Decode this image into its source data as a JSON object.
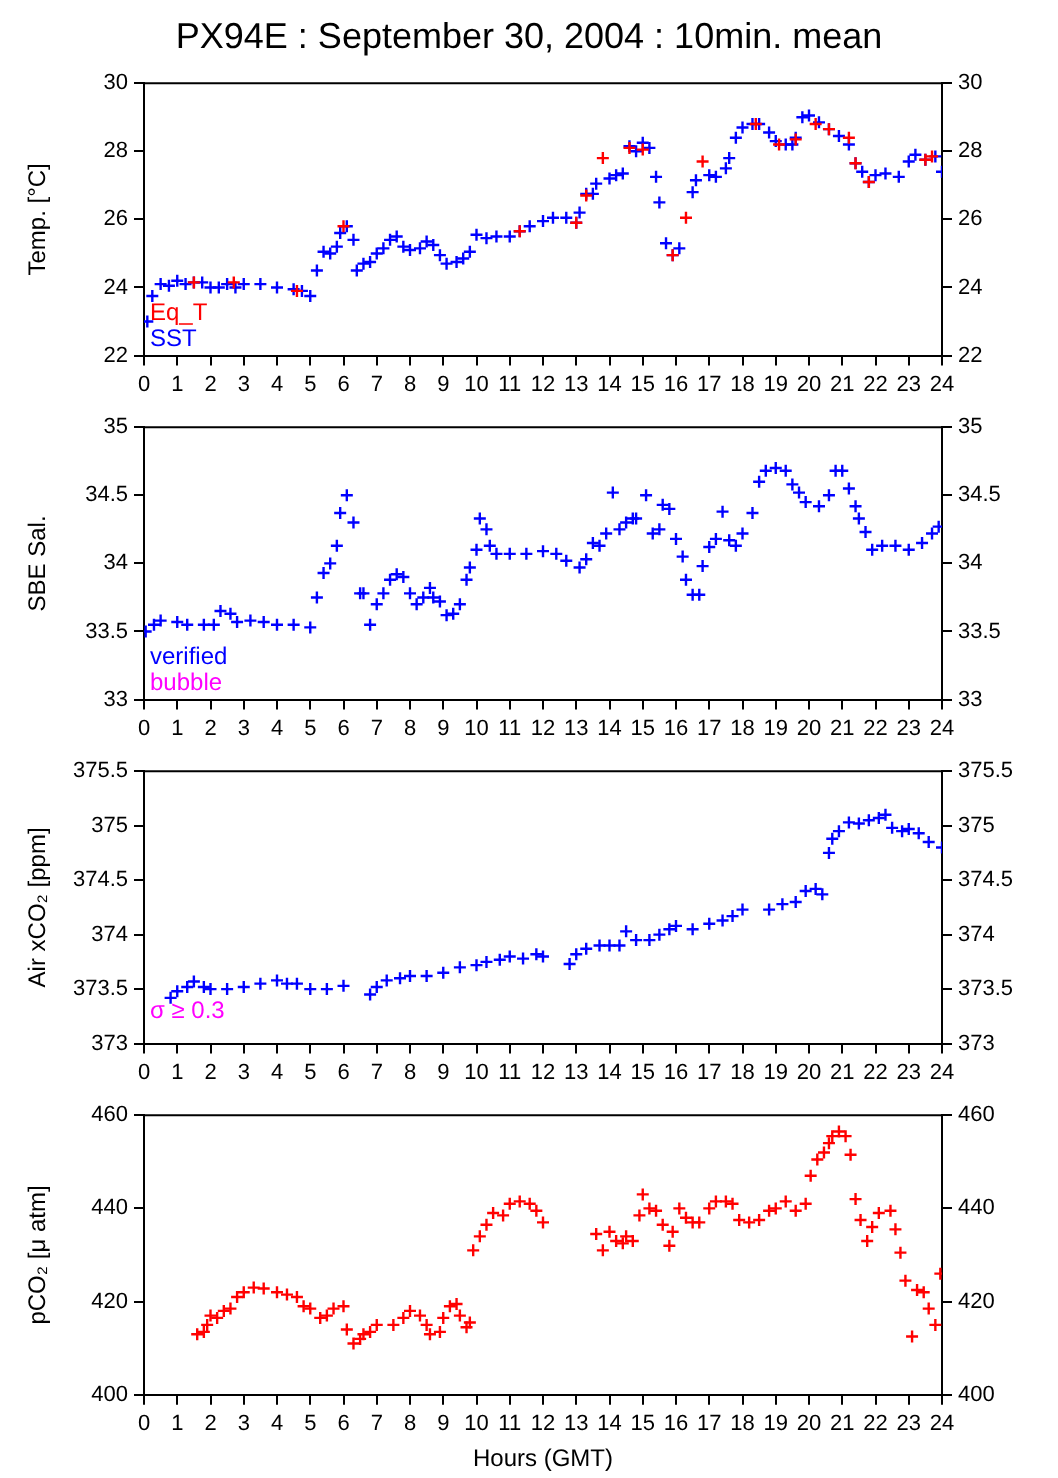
{
  "chart_data": [
    {
      "type": "scatter",
      "title": "PX94E : September 30, 2004 : 10min. mean",
      "ylabel": "Temp. [°C]",
      "marker": "cross",
      "legend": "bottom left",
      "grid": false,
      "xlim": [
        0,
        24
      ],
      "xticks": [
        0,
        1,
        2,
        3,
        4,
        5,
        6,
        7,
        8,
        9,
        10,
        11,
        12,
        13,
        14,
        15,
        16,
        17,
        18,
        19,
        20,
        21,
        22,
        23,
        24
      ],
      "ylim": [
        22,
        30
      ],
      "yticks": [
        22,
        24,
        26,
        28,
        30
      ],
      "y2lim": [
        22,
        30
      ],
      "y2ticks": [
        22,
        24,
        26,
        28,
        30
      ],
      "series": [
        {
          "name": "Eq_T",
          "color": "#ff0000",
          "x": [
            1.5,
            2.7,
            4.6,
            6.0,
            11.3,
            13.0,
            13.3,
            13.8,
            14.6,
            15.0,
            15.9,
            16.3,
            16.8,
            18.4,
            19.1,
            19.6,
            20.2,
            20.6,
            21.2,
            21.4,
            21.8,
            23.5,
            23.7
          ],
          "values": [
            24.15,
            24.15,
            23.9,
            25.8,
            25.65,
            25.9,
            26.7,
            27.8,
            28.1,
            28.05,
            24.95,
            26.05,
            27.7,
            28.8,
            28.2,
            28.35,
            28.8,
            28.65,
            28.4,
            27.65,
            27.1,
            27.75,
            27.85
          ]
        },
        {
          "name": "SST",
          "color": "#0000ff",
          "x": [
            0.1,
            0.25,
            0.5,
            0.75,
            1.0,
            1.25,
            1.5,
            1.75,
            2.0,
            2.25,
            2.5,
            2.75,
            3.0,
            3.5,
            4.0,
            4.5,
            4.75,
            5.0,
            5.2,
            5.4,
            5.6,
            5.8,
            5.9,
            6.1,
            6.3,
            6.4,
            6.6,
            6.8,
            7.0,
            7.2,
            7.4,
            7.6,
            7.8,
            8.0,
            8.3,
            8.5,
            8.7,
            8.9,
            9.1,
            9.4,
            9.6,
            9.8,
            10.0,
            10.3,
            10.6,
            11.0,
            11.3,
            11.6,
            12.0,
            12.3,
            12.7,
            13.0,
            13.1,
            13.3,
            13.5,
            13.6,
            13.8,
            14.0,
            14.2,
            14.4,
            14.6,
            14.8,
            15.0,
            15.2,
            15.4,
            15.5,
            15.7,
            15.9,
            16.1,
            16.3,
            16.5,
            16.6,
            16.8,
            17.0,
            17.2,
            17.5,
            17.6,
            17.8,
            18.0,
            18.3,
            18.5,
            18.8,
            19.0,
            19.3,
            19.5,
            19.6,
            19.8,
            20.0,
            20.3,
            20.6,
            20.9,
            21.2,
            21.4,
            21.6,
            21.8,
            22.0,
            22.3,
            22.7,
            23.0,
            23.2,
            23.5,
            23.8,
            24.0
          ],
          "values": [
            23.0,
            23.75,
            24.1,
            24.05,
            24.2,
            24.1,
            24.15,
            24.15,
            24.0,
            24.0,
            24.1,
            24.0,
            24.1,
            24.1,
            24.0,
            23.95,
            23.9,
            23.75,
            24.5,
            25.05,
            25.0,
            25.2,
            25.6,
            25.8,
            25.4,
            24.5,
            24.7,
            24.75,
            25.0,
            25.15,
            25.4,
            25.5,
            25.2,
            25.1,
            25.15,
            25.35,
            25.25,
            24.95,
            24.7,
            24.75,
            24.85,
            25.05,
            25.55,
            25.45,
            25.5,
            25.5,
            25.65,
            25.8,
            25.95,
            26.05,
            26.05,
            25.9,
            26.2,
            26.75,
            26.75,
            27.05,
            null,
            27.2,
            27.3,
            27.35,
            28.15,
            28.0,
            28.25,
            28.1,
            27.25,
            26.5,
            25.3,
            24.95,
            25.15,
            null,
            26.8,
            27.15,
            null,
            27.3,
            27.25,
            27.5,
            27.8,
            28.4,
            28.7,
            28.8,
            28.8,
            28.55,
            28.3,
            28.2,
            28.2,
            28.4,
            29.0,
            29.05,
            28.85,
            28.65,
            28.45,
            28.2,
            27.65,
            27.4,
            27.1,
            27.3,
            27.35,
            27.25,
            27.7,
            27.9,
            27.75,
            27.85,
            27.4
          ]
        }
      ]
    },
    {
      "type": "scatter",
      "ylabel": "SBE Sal.",
      "marker": "cross",
      "legend": "bottom left",
      "grid": false,
      "xlim": [
        0,
        24
      ],
      "xticks": [
        0,
        1,
        2,
        3,
        4,
        5,
        6,
        7,
        8,
        9,
        10,
        11,
        12,
        13,
        14,
        15,
        16,
        17,
        18,
        19,
        20,
        21,
        22,
        23,
        24
      ],
      "ylim": [
        33,
        35
      ],
      "yticks": [
        33,
        33.5,
        34,
        34.5,
        35
      ],
      "y2lim": [
        33,
        35
      ],
      "y2ticks": [
        33,
        33.5,
        34,
        34.5,
        35
      ],
      "series": [
        {
          "name": "verified",
          "color": "#0000ff",
          "x": [
            0.05,
            0.3,
            0.5,
            1.0,
            1.3,
            1.8,
            2.1,
            2.3,
            2.6,
            2.8,
            3.2,
            3.6,
            4.0,
            4.5,
            5.0,
            5.2,
            5.4,
            5.6,
            5.8,
            5.9,
            6.1,
            6.3,
            6.5,
            6.6,
            6.8,
            7.0,
            7.2,
            7.4,
            7.6,
            7.8,
            8.0,
            8.2,
            8.4,
            8.6,
            8.7,
            8.9,
            9.1,
            9.3,
            9.5,
            9.7,
            9.8,
            10.0,
            10.1,
            10.3,
            10.4,
            10.6,
            11.0,
            11.5,
            12.0,
            12.4,
            12.7,
            13.1,
            13.3,
            13.5,
            13.7,
            13.9,
            14.1,
            14.3,
            14.5,
            14.7,
            14.8,
            15.1,
            15.3,
            15.5,
            15.6,
            15.8,
            16.0,
            16.2,
            16.3,
            16.5,
            16.7,
            16.8,
            17.0,
            17.2,
            17.4,
            17.6,
            17.8,
            18.0,
            18.3,
            18.5,
            18.7,
            19.0,
            19.3,
            19.5,
            19.7,
            19.9,
            20.3,
            20.6,
            20.8,
            21.0,
            21.2,
            21.4,
            21.5,
            21.7,
            21.9,
            22.2,
            22.6,
            23.0,
            23.4,
            23.7,
            23.9
          ],
          "values": [
            33.5,
            33.55,
            33.58,
            33.57,
            33.55,
            33.55,
            33.55,
            33.65,
            33.63,
            33.57,
            33.58,
            33.57,
            33.55,
            33.55,
            33.53,
            33.75,
            33.93,
            34.0,
            34.13,
            34.37,
            34.5,
            34.3,
            33.78,
            33.78,
            33.55,
            33.7,
            33.78,
            33.88,
            33.92,
            33.9,
            33.78,
            33.7,
            33.75,
            33.82,
            33.75,
            33.72,
            33.62,
            33.63,
            33.7,
            33.88,
            33.97,
            34.1,
            34.33,
            34.25,
            34.13,
            34.07,
            34.07,
            34.07,
            34.09,
            34.07,
            34.02,
            33.97,
            34.03,
            34.15,
            34.13,
            34.22,
            34.52,
            34.25,
            34.3,
            34.33,
            34.33,
            34.5,
            34.22,
            34.25,
            34.43,
            34.4,
            34.18,
            34.05,
            33.88,
            33.77,
            33.77,
            33.98,
            34.12,
            34.18,
            34.38,
            34.17,
            34.13,
            34.22,
            34.37,
            34.6,
            34.68,
            34.7,
            34.68,
            34.58,
            34.52,
            34.45,
            34.42,
            34.5,
            34.68,
            34.68,
            34.55,
            34.42,
            34.33,
            34.23,
            34.1,
            34.13,
            34.13,
            34.1,
            34.15,
            34.22,
            34.27
          ]
        },
        {
          "name": "bubble",
          "color": "#ff00ff"
        }
      ]
    },
    {
      "type": "scatter",
      "ylabel": "Air xCO₂ [ppm]",
      "marker": "cross",
      "grid": false,
      "annotations": [
        "σ ≥ 0.3"
      ],
      "xlim": [
        0,
        24
      ],
      "xticks": [
        0,
        1,
        2,
        3,
        4,
        5,
        6,
        7,
        8,
        9,
        10,
        11,
        12,
        13,
        14,
        15,
        16,
        17,
        18,
        19,
        20,
        21,
        22,
        23,
        24
      ],
      "ylim": [
        373,
        375.5
      ],
      "yticks": [
        373,
        373.5,
        374,
        374.5,
        375,
        375.5
      ],
      "y2lim": [
        373,
        375.5
      ],
      "y2ticks": [
        373,
        373.5,
        374,
        374.5,
        375,
        375.5
      ],
      "series": [
        {
          "color": "#0000ff",
          "x": [
            0.8,
            1.0,
            1.3,
            1.5,
            1.8,
            2.0,
            2.5,
            3.0,
            3.5,
            4.0,
            4.3,
            4.6,
            5.0,
            5.5,
            6.0,
            6.8,
            7.0,
            7.3,
            7.7,
            8.0,
            8.5,
            9.0,
            9.5,
            10.0,
            10.3,
            10.7,
            11.0,
            11.4,
            11.8,
            12.0,
            12.8,
            13.0,
            13.3,
            13.7,
            14.0,
            14.3,
            14.5,
            14.8,
            15.2,
            15.5,
            15.8,
            16.0,
            16.5,
            17.0,
            17.4,
            17.7,
            18.0,
            18.8,
            19.2,
            19.6,
            19.9,
            20.2,
            20.4,
            20.6,
            20.7,
            20.9,
            21.2,
            21.5,
            21.8,
            22.1,
            22.3,
            22.5,
            22.8,
            23.0,
            23.3,
            23.6,
            24.0
          ],
          "values": [
            373.42,
            373.48,
            373.52,
            373.57,
            373.52,
            373.5,
            373.5,
            373.52,
            373.55,
            373.58,
            373.55,
            373.55,
            373.5,
            373.5,
            373.53,
            373.45,
            373.52,
            373.58,
            373.6,
            373.62,
            373.62,
            373.65,
            373.7,
            373.72,
            373.75,
            373.77,
            373.8,
            373.78,
            373.82,
            373.8,
            373.73,
            373.82,
            373.87,
            373.9,
            373.9,
            373.9,
            374.03,
            373.95,
            373.95,
            374.0,
            374.05,
            374.08,
            374.05,
            374.1,
            374.13,
            374.17,
            374.23,
            374.23,
            374.28,
            374.3,
            374.4,
            374.42,
            374.37,
            374.75,
            374.88,
            374.95,
            375.03,
            375.02,
            375.05,
            375.07,
            375.1,
            374.98,
            374.95,
            374.97,
            374.93,
            374.85,
            374.8
          ]
        }
      ]
    },
    {
      "type": "scatter",
      "ylabel": "pCO₂ [μ atm]",
      "xlabel": "Hours (GMT)",
      "marker": "cross",
      "grid": false,
      "xlim": [
        0,
        24
      ],
      "xticks": [
        0,
        1,
        2,
        3,
        4,
        5,
        6,
        7,
        8,
        9,
        10,
        11,
        12,
        13,
        14,
        15,
        16,
        17,
        18,
        19,
        20,
        21,
        22,
        23,
        24
      ],
      "ylim": [
        400,
        460
      ],
      "yticks": [
        400,
        420,
        440,
        460
      ],
      "y2lim": [
        400,
        460
      ],
      "y2ticks": [
        400,
        420,
        440,
        460
      ],
      "series": [
        {
          "color": "#ff0000",
          "x": [
            1.6,
            1.8,
            1.9,
            2.0,
            2.2,
            2.4,
            2.6,
            2.8,
            3.0,
            3.3,
            3.6,
            4.0,
            4.3,
            4.6,
            4.8,
            5.0,
            5.3,
            5.5,
            5.7,
            6.0,
            6.1,
            6.3,
            6.5,
            6.6,
            6.8,
            7.0,
            7.5,
            7.8,
            8.0,
            8.3,
            8.5,
            8.6,
            8.9,
            9.0,
            9.2,
            9.4,
            9.5,
            9.7,
            9.8,
            9.9,
            10.1,
            10.3,
            10.5,
            10.8,
            11.0,
            11.3,
            11.6,
            11.8,
            12.0,
            13.6,
            13.8,
            14.0,
            14.2,
            14.4,
            14.5,
            14.7,
            14.9,
            15.0,
            15.2,
            15.4,
            15.6,
            15.8,
            15.9,
            16.1,
            16.3,
            16.5,
            16.7,
            17.0,
            17.2,
            17.5,
            17.7,
            17.9,
            18.2,
            18.5,
            18.8,
            19.0,
            19.3,
            19.6,
            19.9,
            20.05,
            20.25,
            20.45,
            20.6,
            20.7,
            20.9,
            21.1,
            21.25,
            21.4,
            21.55,
            21.75,
            21.9,
            22.1,
            22.45,
            22.6,
            22.75,
            22.9,
            23.1,
            23.25,
            23.45,
            23.6,
            23.8,
            23.95
          ],
          "values": [
            413,
            413.5,
            415,
            417,
            416.5,
            418,
            418.5,
            421,
            422,
            423,
            422.8,
            422,
            421.5,
            421,
            419,
            418.5,
            416.5,
            417,
            418.5,
            419,
            414,
            411,
            412,
            413,
            413.5,
            415,
            415,
            416.5,
            418,
            417,
            415,
            413,
            413.5,
            416.5,
            419,
            419.5,
            417,
            414.5,
            415.5,
            431,
            434,
            436.5,
            439,
            438.5,
            441,
            441.5,
            441,
            439.5,
            437,
            434.5,
            431,
            435,
            433,
            432.5,
            434,
            433,
            438.5,
            443,
            440,
            439.5,
            436.5,
            432,
            435,
            440,
            438,
            437,
            437,
            440,
            441.5,
            441.5,
            441,
            437.5,
            437,
            437.5,
            439.5,
            440,
            441.5,
            439.5,
            441,
            447,
            450.5,
            452,
            454,
            455.5,
            456.5,
            455.5,
            451.5,
            442,
            437.5,
            433,
            436,
            439,
            439.5,
            435.5,
            430.5,
            424.5,
            412.5,
            422.5,
            422,
            418.5,
            415,
            426
          ]
        }
      ]
    }
  ]
}
